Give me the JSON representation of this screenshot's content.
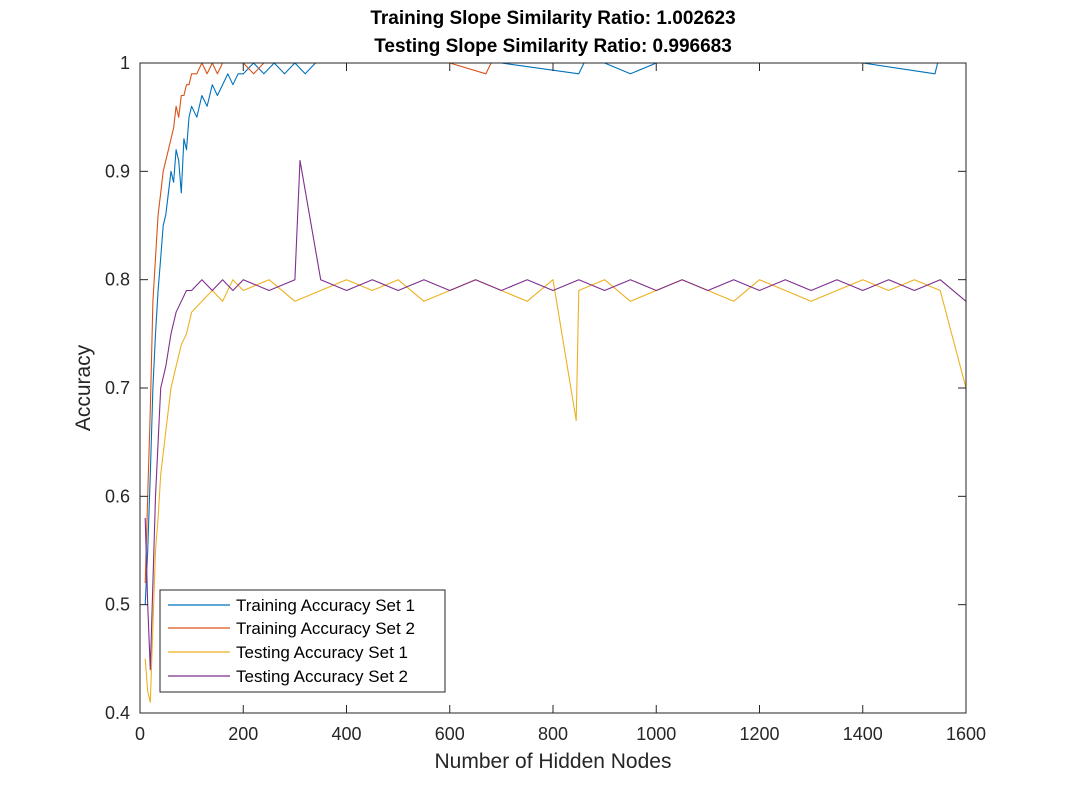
{
  "chart_data": {
    "type": "line",
    "title_lines": [
      "Training Slope Similarity Ratio: 1.002623",
      "Testing Slope Similarity Ratio: 0.996683"
    ],
    "xlabel": "Number of Hidden Nodes",
    "ylabel": "Accuracy",
    "xlim": [
      0,
      1600
    ],
    "ylim": [
      0.4,
      1
    ],
    "x_ticks": [
      0,
      200,
      400,
      600,
      800,
      1000,
      1200,
      1400,
      1600
    ],
    "y_ticks": [
      0.4,
      0.5,
      0.6,
      0.7,
      0.8,
      0.9,
      1
    ],
    "x_tick_labels": [
      "0",
      "200",
      "400",
      "600",
      "800",
      "1000",
      "1200",
      "1400",
      "1600"
    ],
    "y_tick_labels": [
      "0.4",
      "0.5",
      "0.6",
      "0.7",
      "0.8",
      "0.9",
      "1"
    ],
    "grid": false,
    "legend_position": "bottom-left",
    "series": [
      {
        "name": "Training Accuracy Set 1",
        "color": "#0072BD",
        "x": [
          10,
          15,
          20,
          25,
          30,
          35,
          40,
          45,
          50,
          55,
          60,
          65,
          70,
          75,
          80,
          85,
          90,
          95,
          100,
          110,
          120,
          130,
          140,
          150,
          160,
          170,
          180,
          190,
          200,
          220,
          240,
          260,
          280,
          300,
          320,
          340,
          360,
          400,
          500,
          700,
          850,
          860,
          900,
          950,
          1000,
          1200,
          1400,
          1540,
          1545,
          1600
        ],
        "y": [
          0.5,
          0.55,
          0.62,
          0.7,
          0.75,
          0.79,
          0.82,
          0.85,
          0.86,
          0.88,
          0.9,
          0.89,
          0.92,
          0.91,
          0.88,
          0.93,
          0.92,
          0.95,
          0.96,
          0.95,
          0.97,
          0.96,
          0.98,
          0.97,
          0.98,
          0.99,
          0.98,
          0.99,
          0.99,
          1.0,
          0.99,
          1.0,
          0.99,
          1.0,
          0.99,
          1.0,
          1.0,
          1.0,
          1.0,
          1.0,
          0.99,
          1.0,
          1.0,
          0.99,
          1.0,
          1.0,
          1.0,
          0.99,
          1.0,
          1.0
        ]
      },
      {
        "name": "Training Accuracy Set 2",
        "color": "#D95319",
        "x": [
          10,
          15,
          20,
          25,
          30,
          35,
          40,
          45,
          50,
          55,
          60,
          65,
          70,
          75,
          80,
          85,
          90,
          95,
          100,
          110,
          120,
          130,
          140,
          150,
          160,
          180,
          200,
          220,
          240,
          260,
          300,
          400,
          600,
          670,
          680,
          800,
          1000,
          1200,
          1400,
          1600
        ],
        "y": [
          0.52,
          0.6,
          0.68,
          0.78,
          0.82,
          0.86,
          0.88,
          0.9,
          0.91,
          0.92,
          0.93,
          0.94,
          0.96,
          0.95,
          0.97,
          0.97,
          0.98,
          0.98,
          0.99,
          0.99,
          1.0,
          0.99,
          1.0,
          0.99,
          1.0,
          1.0,
          1.0,
          0.99,
          1.0,
          1.0,
          1.0,
          1.0,
          1.0,
          0.99,
          1.0,
          1.0,
          1.0,
          1.0,
          1.0,
          1.0
        ]
      },
      {
        "name": "Testing Accuracy Set 1",
        "color": "#EDB120",
        "x": [
          10,
          15,
          20,
          25,
          30,
          35,
          40,
          50,
          60,
          70,
          80,
          90,
          100,
          120,
          140,
          160,
          180,
          200,
          250,
          300,
          350,
          400,
          450,
          500,
          550,
          600,
          650,
          700,
          750,
          800,
          845,
          850,
          900,
          950,
          1000,
          1050,
          1100,
          1150,
          1200,
          1250,
          1300,
          1350,
          1400,
          1450,
          1500,
          1550,
          1600
        ],
        "y": [
          0.45,
          0.42,
          0.41,
          0.48,
          0.55,
          0.58,
          0.62,
          0.66,
          0.7,
          0.72,
          0.74,
          0.75,
          0.77,
          0.78,
          0.79,
          0.78,
          0.8,
          0.79,
          0.8,
          0.78,
          0.79,
          0.8,
          0.79,
          0.8,
          0.78,
          0.79,
          0.8,
          0.79,
          0.78,
          0.8,
          0.67,
          0.79,
          0.8,
          0.78,
          0.79,
          0.8,
          0.79,
          0.78,
          0.8,
          0.79,
          0.78,
          0.79,
          0.8,
          0.79,
          0.8,
          0.79,
          0.7
        ]
      },
      {
        "name": "Testing Accuracy Set 2",
        "color": "#7E2F8E",
        "x": [
          10,
          15,
          20,
          25,
          30,
          35,
          40,
          50,
          60,
          70,
          80,
          90,
          100,
          120,
          140,
          160,
          180,
          200,
          250,
          300,
          310,
          350,
          400,
          450,
          500,
          550,
          600,
          650,
          700,
          750,
          800,
          850,
          900,
          950,
          1000,
          1050,
          1100,
          1150,
          1200,
          1250,
          1300,
          1350,
          1400,
          1450,
          1500,
          1550,
          1600
        ],
        "y": [
          0.58,
          0.5,
          0.44,
          0.52,
          0.6,
          0.65,
          0.7,
          0.72,
          0.75,
          0.77,
          0.78,
          0.79,
          0.79,
          0.8,
          0.79,
          0.8,
          0.79,
          0.8,
          0.79,
          0.8,
          0.91,
          0.8,
          0.79,
          0.8,
          0.79,
          0.8,
          0.79,
          0.8,
          0.79,
          0.8,
          0.79,
          0.8,
          0.79,
          0.8,
          0.79,
          0.8,
          0.79,
          0.8,
          0.79,
          0.8,
          0.79,
          0.8,
          0.79,
          0.8,
          0.79,
          0.8,
          0.78
        ]
      }
    ]
  }
}
